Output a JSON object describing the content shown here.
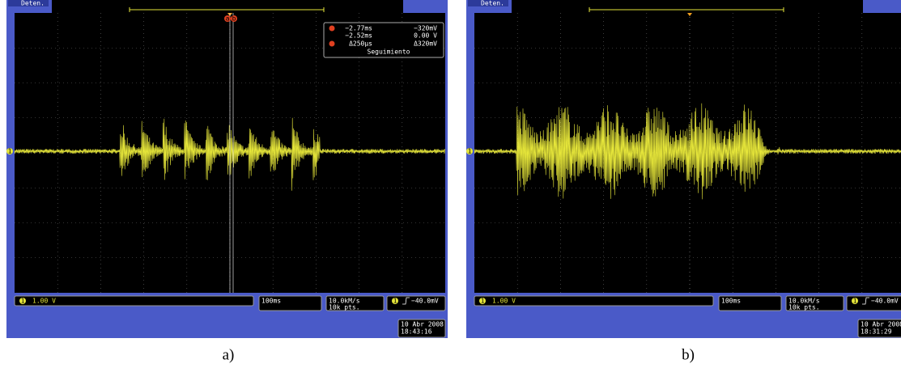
{
  "panels": [
    {
      "status": "Deten.",
      "channel": "1",
      "cursor_readout": {
        "labels": [
          "a",
          "b"
        ],
        "a_time": "−2.77ms",
        "a_volt": "−320mV",
        "b_time": "−2.52ms",
        "b_volt": "0.00 V",
        "delta_time": "Δ250µs",
        "delta_volt": "Δ320mV",
        "mode": "Seguimiento"
      },
      "channel_scale": "1.00 V",
      "timebase": "100ms",
      "sample_rate": "10.0kM/s",
      "record_length": "10k pts.",
      "trigger_level": "−40.0mV",
      "date": "10 Abr 2008",
      "time": "18:43:16",
      "caption": "a)"
    },
    {
      "status": "Deten.",
      "channel": "1",
      "channel_scale": "1.00 V",
      "timebase": "100ms",
      "sample_rate": "10.0kM/s",
      "record_length": "10k pts.",
      "trigger_level": "−40.0mV",
      "date": "10 Abr 2008",
      "time": "18:31:29",
      "caption": "b)"
    }
  ]
}
